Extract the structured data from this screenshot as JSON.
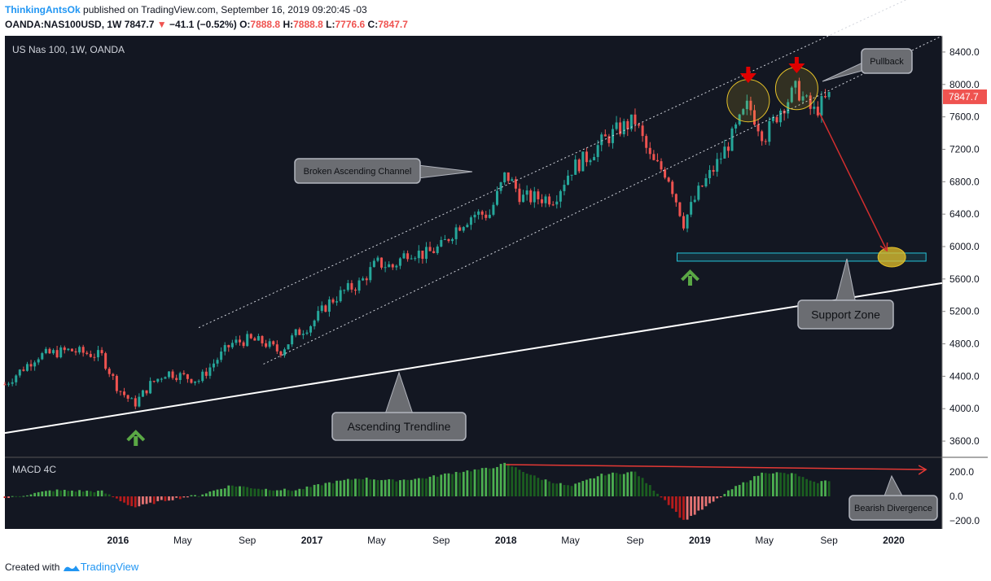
{
  "header": {
    "author": "ThinkingAntsOk",
    "published": "published on TradingView.com, September 16, 2019 09:20:45 -03",
    "symbol": "OANDA:NAS100USD, 1W",
    "last": "7847.7",
    "change": "−41.1 (−0.52%)",
    "o_label": "O:",
    "o": "7888.8",
    "h_label": "H:",
    "h": "7888.8",
    "l_label": "L:",
    "l": "7776.6",
    "c_label": "C:",
    "c": "7847.7"
  },
  "footer": {
    "created": "Created with",
    "brand": "TradingView"
  },
  "colors": {
    "up": "#26a69a",
    "down": "#ef5350",
    "pane_bg": "#131722",
    "macd_green": "#4caf50",
    "macd_dark_green": "#1b5e20",
    "macd_red": "#b71c1c",
    "arrow_red": "#e00000",
    "arrow_green": "#5aa845",
    "support": "#26c6da",
    "highlight": "#e6c229"
  },
  "chart_data": {
    "type": "candlestick",
    "title": "US Nas 100, 1W, OANDA",
    "indicator_label": "MACD 4C",
    "last_price_label": "7847.7",
    "price_ticks": [
      3600,
      4000,
      4400,
      4800,
      5200,
      5600,
      6000,
      6400,
      6800,
      7200,
      7600,
      8000,
      8400
    ],
    "price_tick_labels": [
      "3600.0",
      "4000.0",
      "4400.0",
      "4800.0",
      "5200.0",
      "5600.0",
      "6000.0",
      "6400.0",
      "6800.0",
      "7200.0",
      "7600.0",
      "8000.0",
      "8400.0"
    ],
    "macd_ticks": [
      200,
      0,
      -200
    ],
    "macd_tick_labels": [
      "200.0",
      "0.0",
      "−200.0"
    ],
    "time_labels": [
      "2016",
      "May",
      "Sep",
      "2017",
      "May",
      "Sep",
      "2018",
      "May",
      "Sep",
      "2019",
      "May",
      "Sep",
      "2020"
    ],
    "time_ticks": [
      "2016-01",
      "2016-05",
      "2016-09",
      "2017-01",
      "2017-05",
      "2017-09",
      "2018-01",
      "2018-05",
      "2018-09",
      "2019-01",
      "2019-05",
      "2019-09",
      "2020-01"
    ],
    "time_range": [
      "2015-06",
      "2020-04"
    ],
    "price_range": [
      3400,
      8600
    ],
    "close_path": [
      [
        "2015-06",
        4300
      ],
      [
        "2015-08",
        4650
      ],
      [
        "2015-10",
        4720
      ],
      [
        "2015-12",
        4650
      ],
      [
        "2016-01",
        4250
      ],
      [
        "2016-02",
        4050
      ],
      [
        "2016-03",
        4300
      ],
      [
        "2016-04",
        4450
      ],
      [
        "2016-05",
        4400
      ],
      [
        "2016-06",
        4350
      ],
      [
        "2016-07",
        4580
      ],
      [
        "2016-08",
        4800
      ],
      [
        "2016-09",
        4850
      ],
      [
        "2016-10",
        4820
      ],
      [
        "2016-11",
        4700
      ],
      [
        "2016-12",
        4920
      ],
      [
        "2017-01",
        5050
      ],
      [
        "2017-02",
        5300
      ],
      [
        "2017-03",
        5450
      ],
      [
        "2017-04",
        5550
      ],
      [
        "2017-05",
        5800
      ],
      [
        "2017-06",
        5750
      ],
      [
        "2017-07",
        5950
      ],
      [
        "2017-08",
        5900
      ],
      [
        "2017-09",
        6000
      ],
      [
        "2017-10",
        6250
      ],
      [
        "2017-11",
        6400
      ],
      [
        "2017-12",
        6400
      ],
      [
        "2018-01",
        6900
      ],
      [
        "2018-02",
        6600
      ],
      [
        "2018-03",
        6600
      ],
      [
        "2018-04",
        6600
      ],
      [
        "2018-05",
        6950
      ],
      [
        "2018-06",
        7100
      ],
      [
        "2018-07",
        7300
      ],
      [
        "2018-08",
        7450
      ],
      [
        "2018-09",
        7550
      ],
      [
        "2018-10",
        7050
      ],
      [
        "2018-11",
        6900
      ],
      [
        "2018-12",
        6300
      ],
      [
        "2019-01",
        6700
      ],
      [
        "2019-02",
        7000
      ],
      [
        "2019-03",
        7350
      ],
      [
        "2019-04",
        7750
      ],
      [
        "2019-05",
        7350
      ],
      [
        "2019-06",
        7700
      ],
      [
        "2019-07",
        7950
      ],
      [
        "2019-08",
        7650
      ],
      [
        "2019-09",
        7847.7
      ]
    ],
    "support_zone": [
      5820,
      5920
    ],
    "support_zone_time": [
      "2018-12",
      "2020-03"
    ],
    "ascending_trendline": [
      [
        "2015-06",
        3700
      ],
      [
        "2020-04",
        5550
      ]
    ],
    "channel_upper": [
      [
        "2016-06",
        5000
      ],
      [
        "2020-04",
        9250
      ]
    ],
    "channel_lower": [
      [
        "2016-10",
        4550
      ],
      [
        "2020-04",
        8600
      ]
    ],
    "macd_histogram": [
      [
        "2015-06",
        -15
      ],
      [
        "2015-09",
        50
      ],
      [
        "2015-12",
        40
      ],
      [
        "2016-02",
        -90
      ],
      [
        "2016-04",
        -30
      ],
      [
        "2016-06",
        10
      ],
      [
        "2016-08",
        90
      ],
      [
        "2016-10",
        60
      ],
      [
        "2016-12",
        50
      ],
      [
        "2017-02",
        110
      ],
      [
        "2017-04",
        150
      ],
      [
        "2017-06",
        130
      ],
      [
        "2017-08",
        150
      ],
      [
        "2017-10",
        200
      ],
      [
        "2017-12",
        230
      ],
      [
        "2018-01",
        270
      ],
      [
        "2018-03",
        150
      ],
      [
        "2018-05",
        80
      ],
      [
        "2018-07",
        180
      ],
      [
        "2018-09",
        200
      ],
      [
        "2018-11",
        -50
      ],
      [
        "2018-12",
        -200
      ],
      [
        "2019-01",
        -120
      ],
      [
        "2019-03",
        60
      ],
      [
        "2019-05",
        200
      ],
      [
        "2019-07",
        180
      ],
      [
        "2019-08",
        110
      ],
      [
        "2019-09",
        130
      ]
    ],
    "divergence_line": [
      [
        "2018-01",
        260
      ],
      [
        "2020-03",
        220
      ]
    ]
  },
  "annotations": {
    "channel": "Broken Ascending Channel",
    "trendline": "Ascending Trendline",
    "support": "Support Zone",
    "pullback": "Pullback",
    "divergence": "Bearish Divergence"
  }
}
